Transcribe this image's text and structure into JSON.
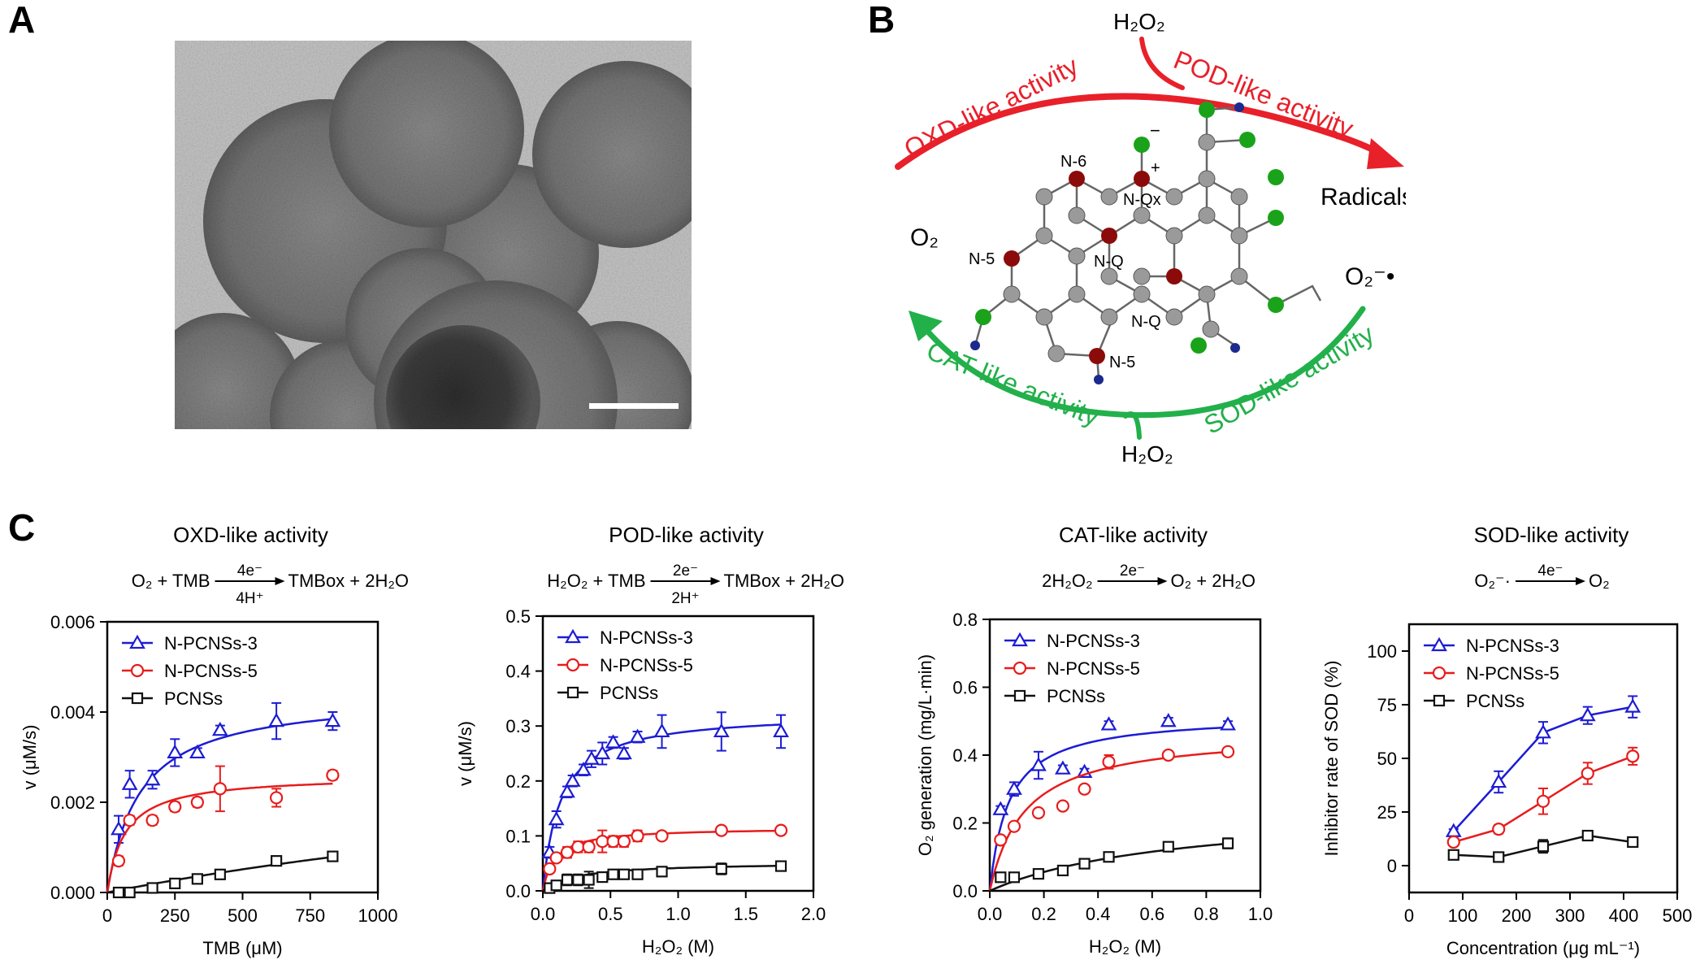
{
  "panel_labels": {
    "a": "A",
    "b": "B",
    "c": "C"
  },
  "scheme": {
    "h2o2_top": "H₂O₂",
    "h2o2_bottom": "H₂O₂",
    "o2": "O₂",
    "radicals": "Radicals",
    "superoxide": "O₂⁻•",
    "oxd_label": "OXD-like activity",
    "pod_label": "POD-like activity",
    "cat_label": "CAT-like activity",
    "sod_label": "SOD-like activity",
    "n6": "N-6",
    "nqx": "N-Qx",
    "nq1": "N-Q",
    "nq2": "N-Q",
    "n5a": "N-5",
    "n5b": "N-5",
    "minus": "−",
    "plus": "+",
    "colors": {
      "red": "#e8202a",
      "green": "#22b04b",
      "atom_grey": "#9a9a9a",
      "atom_red": "#8b0b0b",
      "atom_green": "#1aa31a",
      "atom_blue": "#1c2a8f"
    }
  },
  "chart_data": [
    {
      "type": "scatter",
      "title": "OXD-like activity",
      "equation": {
        "left": "O₂ + TMB",
        "above": "4e⁻",
        "below": "4H⁺",
        "right": "TMBox + 2H₂O"
      },
      "xlabel": "TMB (μM)",
      "ylabel": "v (μM/s)",
      "xlim": [
        0,
        1000
      ],
      "ylim": [
        0,
        0.006
      ],
      "xticks": [
        0,
        250,
        500,
        750,
        1000
      ],
      "xtick_labels": [
        "0",
        "250",
        "500",
        "750",
        "1000"
      ],
      "yticks": [
        0,
        0.002,
        0.004,
        0.006
      ],
      "ytick_labels": [
        "0.000",
        "0.002",
        "0.004",
        "0.006"
      ],
      "legend": "top-left",
      "fit": "michaelis-menten",
      "series": [
        {
          "name": "N-PCNSs-3",
          "marker": "triangle",
          "color": "#1c1cd4",
          "fit_vmax": 0.0044,
          "fit_k": 120,
          "x": [
            42,
            83,
            167,
            250,
            333,
            417,
            625,
            833
          ],
          "y": [
            0.0014,
            0.0024,
            0.0025,
            0.0031,
            0.0031,
            0.0036,
            0.0038,
            0.0038
          ],
          "err": [
            0.0003,
            0.0003,
            0.0002,
            0.0003,
            0.0001,
            0.0001,
            0.0004,
            0.0002
          ]
        },
        {
          "name": "N-PCNSs-5",
          "marker": "circle",
          "color": "#e81c1c",
          "fit_vmax": 0.0026,
          "fit_k": 65,
          "x": [
            42,
            83,
            167,
            250,
            333,
            417,
            625,
            833
          ],
          "y": [
            0.0007,
            0.0016,
            0.0016,
            0.0019,
            0.002,
            0.0023,
            0.0021,
            0.0026
          ],
          "err": [
            0.0001,
            0.0001,
            0.0001,
            0.0001,
            0.0001,
            0.0005,
            0.0002,
            0.0001
          ]
        },
        {
          "name": "PCNSs",
          "marker": "square",
          "color": "#111111",
          "fit_vmax": 0.004,
          "fit_k": 3400,
          "x": [
            42,
            83,
            167,
            250,
            333,
            417,
            625,
            833
          ],
          "y": [
            0.0,
            0.0,
            0.0001,
            0.0002,
            0.0003,
            0.0004,
            0.0007,
            0.0008
          ],
          "err": [
            3e-05,
            3e-05,
            3e-05,
            3e-05,
            3e-05,
            3e-05,
            0.0001,
            0.0001
          ]
        }
      ]
    },
    {
      "type": "scatter",
      "title": "POD-like activity",
      "equation": {
        "left": "H₂O₂ + TMB",
        "above": "2e⁻",
        "below": "2H⁺",
        "right": "TMBox + 2H₂O"
      },
      "xlabel": "H₂O₂ (M)",
      "ylabel": "v (μM/s)",
      "xlim": [
        0,
        2.0
      ],
      "ylim": [
        0,
        0.5
      ],
      "xticks": [
        0,
        0.5,
        1.0,
        1.5,
        2.0
      ],
      "xtick_labels": [
        "0.0",
        "0.5",
        "1.0",
        "1.5",
        "2.0"
      ],
      "yticks": [
        0,
        0.1,
        0.2,
        0.3,
        0.4,
        0.5
      ],
      "ytick_labels": [
        "0.0",
        "0.1",
        "0.2",
        "0.3",
        "0.4",
        "0.5"
      ],
      "legend": "top-left",
      "fit": "michaelis-menten",
      "series": [
        {
          "name": "N-PCNSs-3",
          "marker": "triangle",
          "color": "#1c1cd4",
          "fit_vmax": 0.325,
          "fit_k": 0.13,
          "x": [
            0.05,
            0.1,
            0.18,
            0.22,
            0.3,
            0.36,
            0.44,
            0.52,
            0.6,
            0.7,
            0.88,
            1.32,
            1.76
          ],
          "y": [
            0.07,
            0.13,
            0.18,
            0.2,
            0.22,
            0.24,
            0.25,
            0.27,
            0.25,
            0.28,
            0.29,
            0.29,
            0.29
          ],
          "err": [
            0.01,
            0.015,
            0.01,
            0.01,
            0.01,
            0.015,
            0.02,
            0.01,
            0.01,
            0.01,
            0.03,
            0.035,
            0.03
          ]
        },
        {
          "name": "N-PCNSs-5",
          "marker": "circle",
          "color": "#e81c1c",
          "fit_vmax": 0.115,
          "fit_k": 0.09,
          "x": [
            0.05,
            0.1,
            0.18,
            0.26,
            0.34,
            0.44,
            0.52,
            0.6,
            0.7,
            0.88,
            1.32,
            1.76
          ],
          "y": [
            0.04,
            0.06,
            0.07,
            0.08,
            0.08,
            0.09,
            0.09,
            0.09,
            0.1,
            0.1,
            0.11,
            0.11
          ],
          "err": [
            0.005,
            0.005,
            0.01,
            0.01,
            0.01,
            0.02,
            0.01,
            0.01,
            0.01,
            0.005,
            0.005,
            0.005
          ]
        },
        {
          "name": "PCNSs",
          "marker": "square",
          "color": "#111111",
          "fit_vmax": 0.052,
          "fit_k": 0.25,
          "x": [
            0.05,
            0.1,
            0.18,
            0.26,
            0.34,
            0.44,
            0.52,
            0.6,
            0.7,
            0.88,
            1.32,
            1.76
          ],
          "y": [
            0.005,
            0.01,
            0.02,
            0.02,
            0.02,
            0.025,
            0.03,
            0.03,
            0.03,
            0.035,
            0.04,
            0.045
          ],
          "err": [
            0.005,
            0.005,
            0.01,
            0.01,
            0.015,
            0.005,
            0.005,
            0.005,
            0.005,
            0.005,
            0.01,
            0.005
          ]
        }
      ]
    },
    {
      "type": "scatter",
      "title": "CAT-like activity",
      "equation": {
        "left": "2H₂O₂",
        "above": "2e⁻",
        "below": "",
        "right": "O₂ + 2H₂O"
      },
      "xlabel": "H₂O₂ (M)",
      "ylabel": "O₂ generation (mg/L·min)",
      "xlim": [
        0,
        1.0
      ],
      "ylim": [
        0,
        0.8
      ],
      "xticks": [
        0,
        0.2,
        0.4,
        0.6,
        0.8,
        1.0
      ],
      "xtick_labels": [
        "0.0",
        "0.2",
        "0.4",
        "0.6",
        "0.8",
        "1.0"
      ],
      "yticks": [
        0,
        0.2,
        0.4,
        0.6,
        0.8
      ],
      "ytick_labels": [
        "0.0",
        "0.2",
        "0.4",
        "0.6",
        "0.8"
      ],
      "legend": "top-left",
      "fit": "michaelis-menten",
      "series": [
        {
          "name": "N-PCNSs-3",
          "marker": "triangle",
          "color": "#1c1cd4",
          "fit_vmax": 0.52,
          "fit_k": 0.07,
          "x": [
            0.04,
            0.09,
            0.18,
            0.27,
            0.35,
            0.44,
            0.66,
            0.88
          ],
          "y": [
            0.24,
            0.3,
            0.37,
            0.36,
            0.35,
            0.49,
            0.5,
            0.49
          ],
          "err": [
            0.01,
            0.02,
            0.04,
            0.01,
            0.01,
            0.01,
            0.01,
            0.01
          ]
        },
        {
          "name": "N-PCNSs-5",
          "marker": "circle",
          "color": "#e81c1c",
          "fit_vmax": 0.47,
          "fit_k": 0.13,
          "x": [
            0.04,
            0.09,
            0.18,
            0.27,
            0.35,
            0.44,
            0.66,
            0.88
          ],
          "y": [
            0.15,
            0.19,
            0.23,
            0.25,
            0.3,
            0.38,
            0.4,
            0.41
          ],
          "err": [
            0.01,
            0.01,
            0.01,
            0.01,
            0.01,
            0.02,
            0.01,
            0.01
          ]
        },
        {
          "name": "PCNSs",
          "marker": "square",
          "color": "#111111",
          "fit_vmax": 0.25,
          "fit_k": 0.7,
          "x": [
            0.04,
            0.09,
            0.18,
            0.27,
            0.35,
            0.44,
            0.66,
            0.88
          ],
          "y": [
            0.04,
            0.04,
            0.05,
            0.06,
            0.08,
            0.1,
            0.13,
            0.14
          ],
          "err": [
            0.01,
            0.01,
            0.005,
            0.005,
            0.01,
            0.005,
            0.01,
            0.015
          ]
        }
      ]
    },
    {
      "type": "line",
      "title": "SOD-like activity",
      "equation": {
        "left": "O₂⁻·",
        "above": "4e⁻",
        "below": "",
        "right": "O₂"
      },
      "xlabel": "Concentration (μg mL⁻¹)",
      "ylabel": "Inhibitor rate of SOD (%)",
      "xlim": [
        0,
        500
      ],
      "ylim": [
        -12.5,
        112.5
      ],
      "xticks": [
        0,
        100,
        200,
        300,
        400,
        500
      ],
      "xtick_labels": [
        "0",
        "100",
        "200",
        "300",
        "400",
        "500"
      ],
      "yticks": [
        0,
        25,
        50,
        75,
        100
      ],
      "ytick_labels": [
        "0",
        "25",
        "50",
        "75",
        "100"
      ],
      "legend": "top-left",
      "fit": "connect",
      "series": [
        {
          "name": "N-PCNSs-3",
          "marker": "triangle",
          "color": "#1c1cd4",
          "x": [
            83,
            167,
            250,
            333,
            417
          ],
          "y": [
            16,
            39,
            62,
            70,
            74
          ],
          "err": [
            1,
            5,
            5,
            4,
            5
          ]
        },
        {
          "name": "N-PCNSs-5",
          "marker": "circle",
          "color": "#e81c1c",
          "x": [
            83,
            167,
            250,
            333,
            417
          ],
          "y": [
            11,
            17,
            30,
            43,
            51
          ],
          "err": [
            1,
            2,
            6,
            5,
            4
          ]
        },
        {
          "name": "PCNSs",
          "marker": "square",
          "color": "#111111",
          "x": [
            83,
            167,
            250,
            333,
            417
          ],
          "y": [
            5,
            4,
            9,
            14,
            11
          ],
          "err": [
            1,
            1,
            3,
            1,
            1
          ]
        }
      ]
    }
  ]
}
